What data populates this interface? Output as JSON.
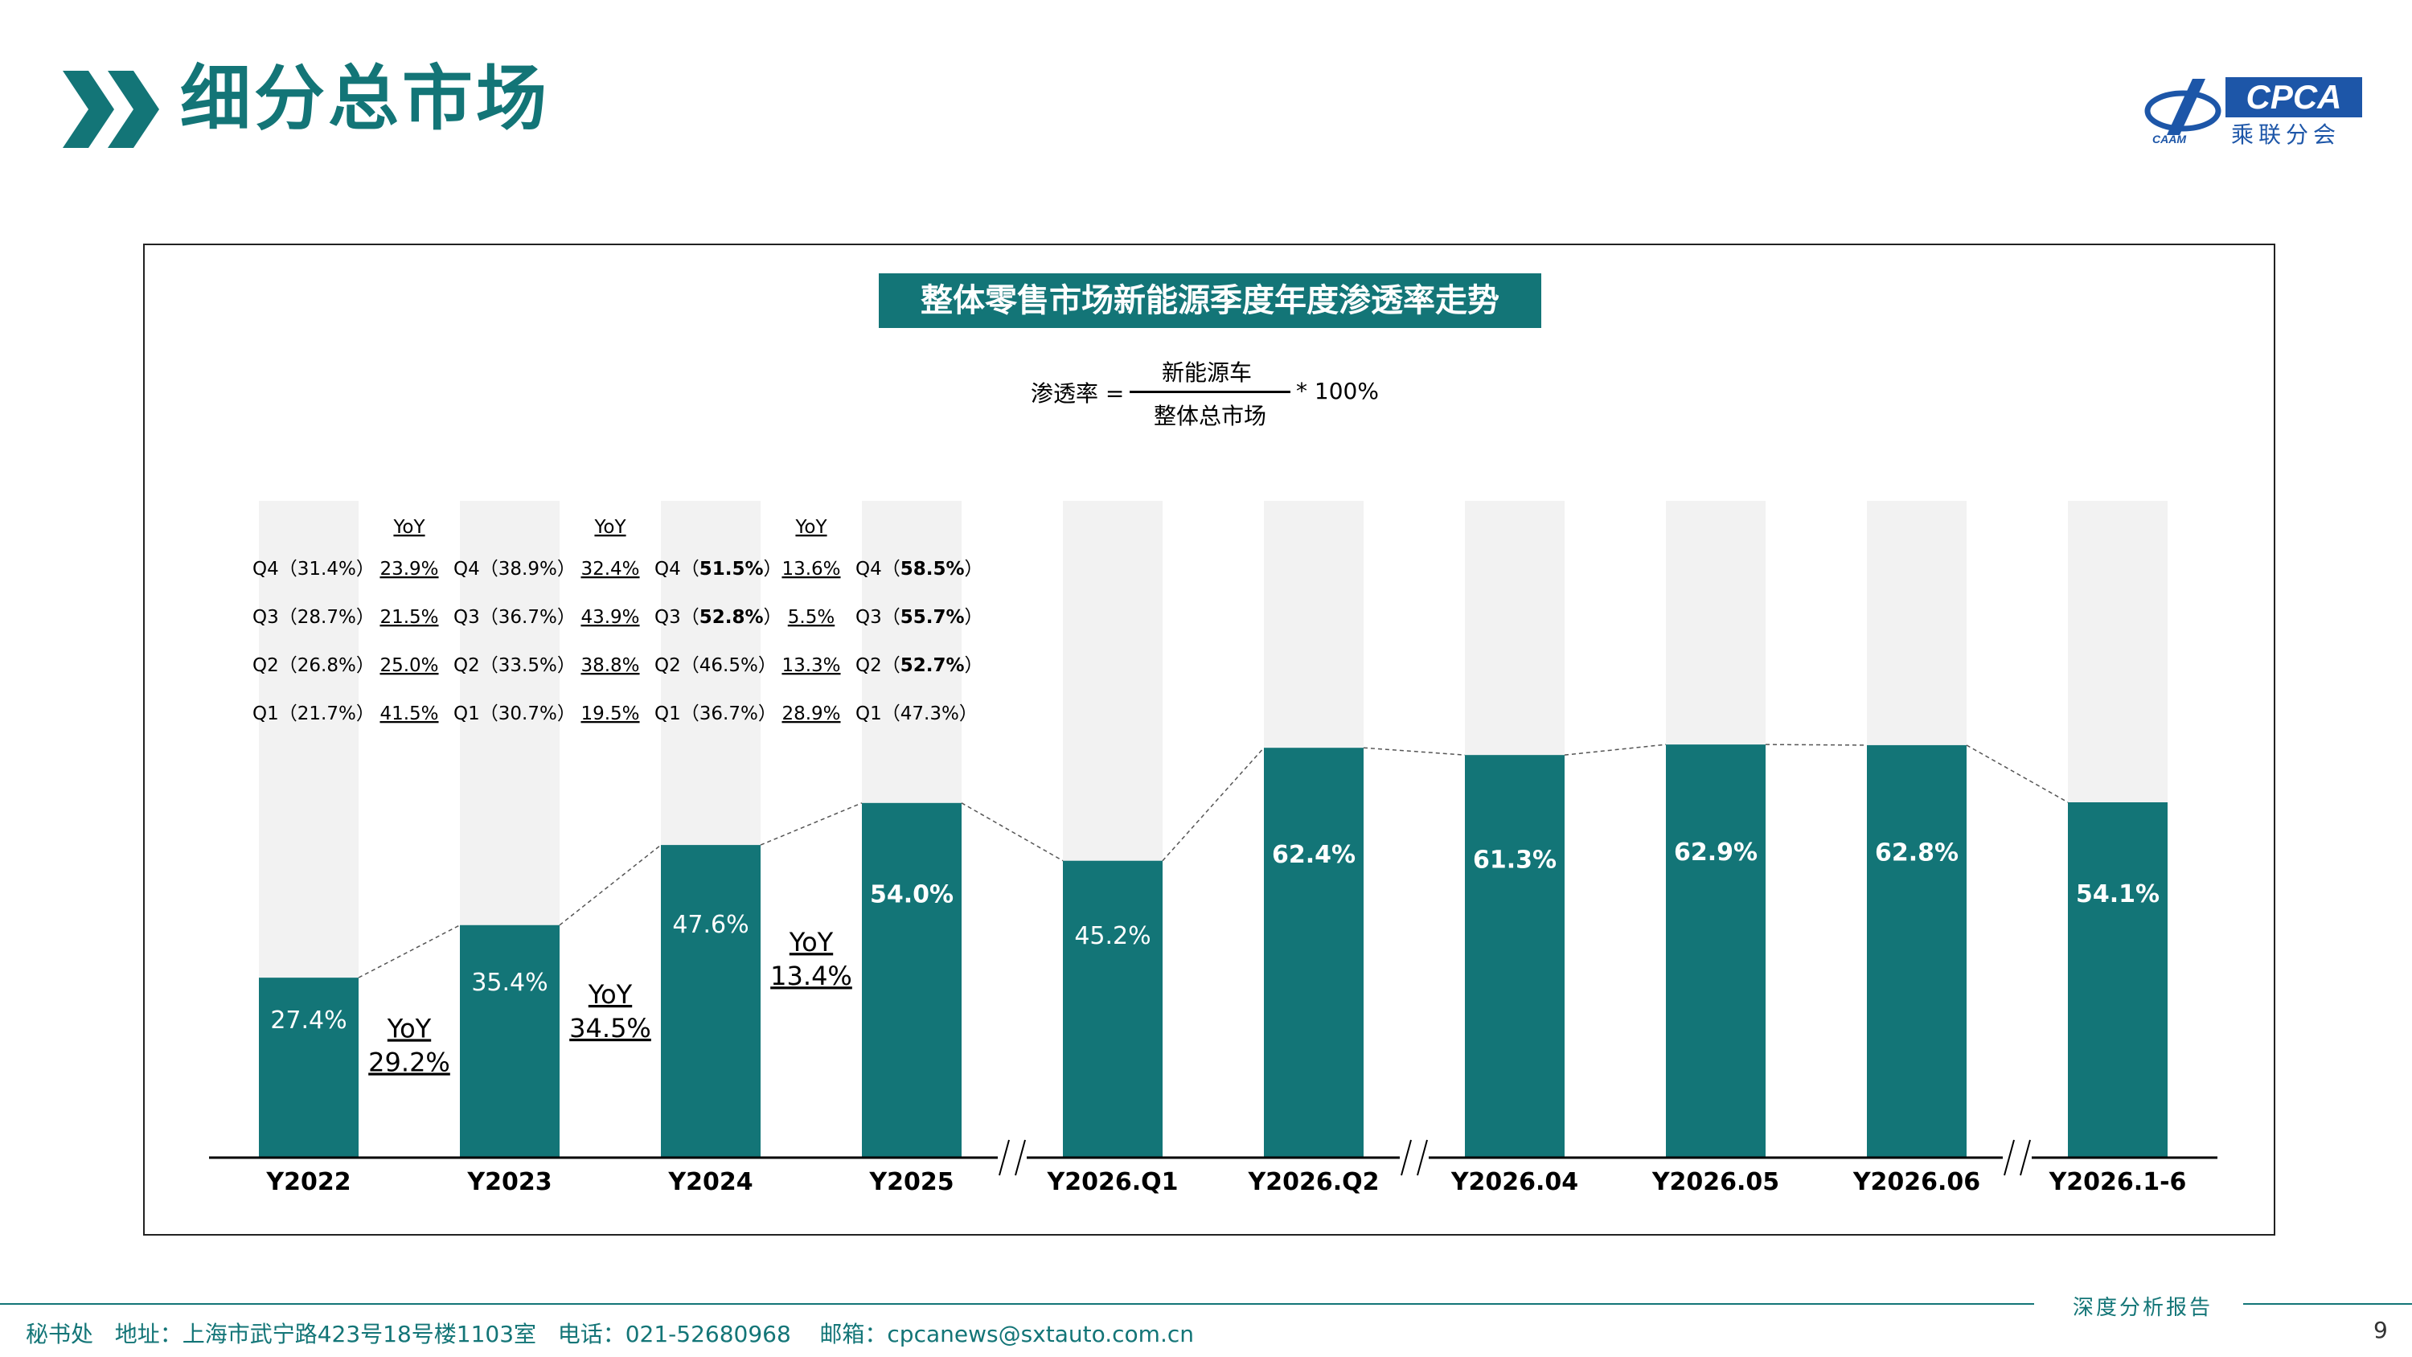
{
  "header": {
    "title": "细分总市场"
  },
  "logo": {
    "text": "CPCA",
    "subtext": "乘联分会",
    "mark_text": "CPCA"
  },
  "chart": {
    "title": "整体零售市场新能源季度年度渗透率走势",
    "formula": {
      "label": "渗透率 =",
      "numerator": "新能源车",
      "denominator": "整体总市场",
      "multiplier": "* 100%"
    }
  },
  "chart_data": {
    "type": "bar",
    "stacked_to_100": true,
    "categories": [
      "Y2022",
      "Y2023",
      "Y2024",
      "Y2025",
      "Y2026.Q1",
      "Y2026.Q2",
      "Y2026.04",
      "Y2026.05",
      "Y2026.06",
      "Y2026.1-6"
    ],
    "values": [
      27.4,
      35.4,
      47.6,
      54.0,
      45.2,
      62.4,
      61.3,
      62.9,
      62.8,
      54.1
    ],
    "value_labels": [
      "27.4%",
      "35.4%",
      "47.6%",
      "54.0%",
      "45.2%",
      "62.4%",
      "61.3%",
      "62.9%",
      "62.8%",
      "54.1%"
    ],
    "bold_labels": [
      false,
      false,
      false,
      true,
      false,
      true,
      true,
      true,
      true,
      true
    ],
    "ylim": [
      0,
      100
    ],
    "bar_color": "#137577",
    "background_bar_color": "#f2f2f2",
    "axis_breaks_after": [
      "Y2025",
      "Y2026.Q2",
      "Y2026.06"
    ],
    "annual_yoy": [
      {
        "label": "YoY",
        "value": "29.2%"
      },
      {
        "label": "YoY",
        "value": "34.5%"
      },
      {
        "label": "YoY",
        "value": "13.4%"
      }
    ],
    "quarterly_table": {
      "yoy_header": "YoY",
      "years": [
        {
          "year": "Y2022",
          "rows": [
            {
              "q": "Q4",
              "pct": "31.4%",
              "bold": false,
              "yoy": "23.9%"
            },
            {
              "q": "Q3",
              "pct": "28.7%",
              "bold": false,
              "yoy": "21.5%"
            },
            {
              "q": "Q2",
              "pct": "26.8%",
              "bold": false,
              "yoy": "25.0%"
            },
            {
              "q": "Q1",
              "pct": "21.7%",
              "bold": false,
              "yoy": "41.5%"
            }
          ]
        },
        {
          "year": "Y2023",
          "rows": [
            {
              "q": "Q4",
              "pct": "38.9%",
              "bold": false,
              "yoy": "32.4%"
            },
            {
              "q": "Q3",
              "pct": "36.7%",
              "bold": false,
              "yoy": "43.9%"
            },
            {
              "q": "Q2",
              "pct": "33.5%",
              "bold": false,
              "yoy": "38.8%"
            },
            {
              "q": "Q1",
              "pct": "30.7%",
              "bold": false,
              "yoy": "19.5%"
            }
          ]
        },
        {
          "year": "Y2024",
          "rows": [
            {
              "q": "Q4",
              "pct": "51.5%",
              "bold": true,
              "yoy": "13.6%"
            },
            {
              "q": "Q3",
              "pct": "52.8%",
              "bold": true,
              "yoy": "5.5%"
            },
            {
              "q": "Q2",
              "pct": "46.5%",
              "bold": false,
              "yoy": "13.3%"
            },
            {
              "q": "Q1",
              "pct": "36.7%",
              "bold": false,
              "yoy": "28.9%"
            }
          ]
        },
        {
          "year": "Y2025",
          "rows": [
            {
              "q": "Q4",
              "pct": "58.5%",
              "bold": true
            },
            {
              "q": "Q3",
              "pct": "55.7%",
              "bold": true
            },
            {
              "q": "Q2",
              "pct": "52.7%",
              "bold": true
            },
            {
              "q": "Q1",
              "pct": "47.3%",
              "bold": false
            }
          ]
        }
      ]
    }
  },
  "footer": {
    "text": "秘书处   地址：上海市武宁路423号18号楼1103室   电话：021-52680968    邮箱：cpcanews@sxtauto.com.cn",
    "report": "深度分析报告",
    "page": "9"
  },
  "colors": {
    "accent": "#137577",
    "logo_blue": "#1d56a8"
  }
}
